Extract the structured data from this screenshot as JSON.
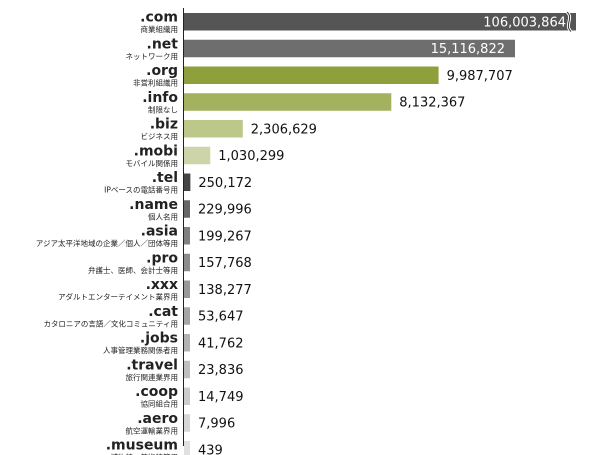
{
  "chart_data": {
    "type": "bar",
    "orientation": "horizontal",
    "categories": [
      ".com",
      ".net",
      ".org",
      ".info",
      ".biz",
      ".mobi",
      ".tel",
      ".name",
      ".asia",
      ".pro",
      ".xxx",
      ".cat",
      ".jobs",
      ".travel",
      ".coop",
      ".aero",
      ".museum"
    ],
    "descriptions": [
      "商業組織用",
      "ネットワーク用",
      "非営利組織用",
      "制限なし",
      "ビジネス用",
      "モバイル関係用",
      "IPベースの電話番号用",
      "個人名用",
      "アジア太平洋地域の企業／個人／団体等用",
      "弁護士、医師、会計士等用",
      "アダルトエンターテイメント業界用",
      "カタロニアの言語／文化コミュニティ用",
      "人事管理業務関係者用",
      "旅行関連業界用",
      "協同組合用",
      "航空運輸業界用",
      "博物館、美術館等用"
    ],
    "values": [
      106003864,
      15116822,
      9987707,
      8132367,
      2306629,
      1030299,
      250172,
      229996,
      199267,
      157768,
      138277,
      53647,
      41762,
      23836,
      14749,
      7996,
      439
    ],
    "value_labels": [
      "106,003,864",
      "15,116,822",
      "9,987,707",
      "8,132,367",
      "2,306,629",
      "1,030,299",
      "250,172",
      "229,996",
      "199,267",
      "157,768",
      "138,277",
      "53,647",
      "41,762",
      "23,836",
      "14,749",
      "7,996",
      "439"
    ],
    "colors": [
      "#555555",
      "#6e6e6e",
      "#8da03c",
      "#a3b25e",
      "#bcc88a",
      "#cdd4a8",
      "#444444",
      "#666666",
      "#808080",
      "#8c8c8c",
      "#999999",
      "#a6a6a6",
      "#b3b3b3",
      "#bfbfbf",
      "#cccccc",
      "#d6d6d6",
      "#e0e0e0"
    ],
    "broken_axis_bar": ".com",
    "grid": false,
    "legend": "none",
    "title": ""
  }
}
